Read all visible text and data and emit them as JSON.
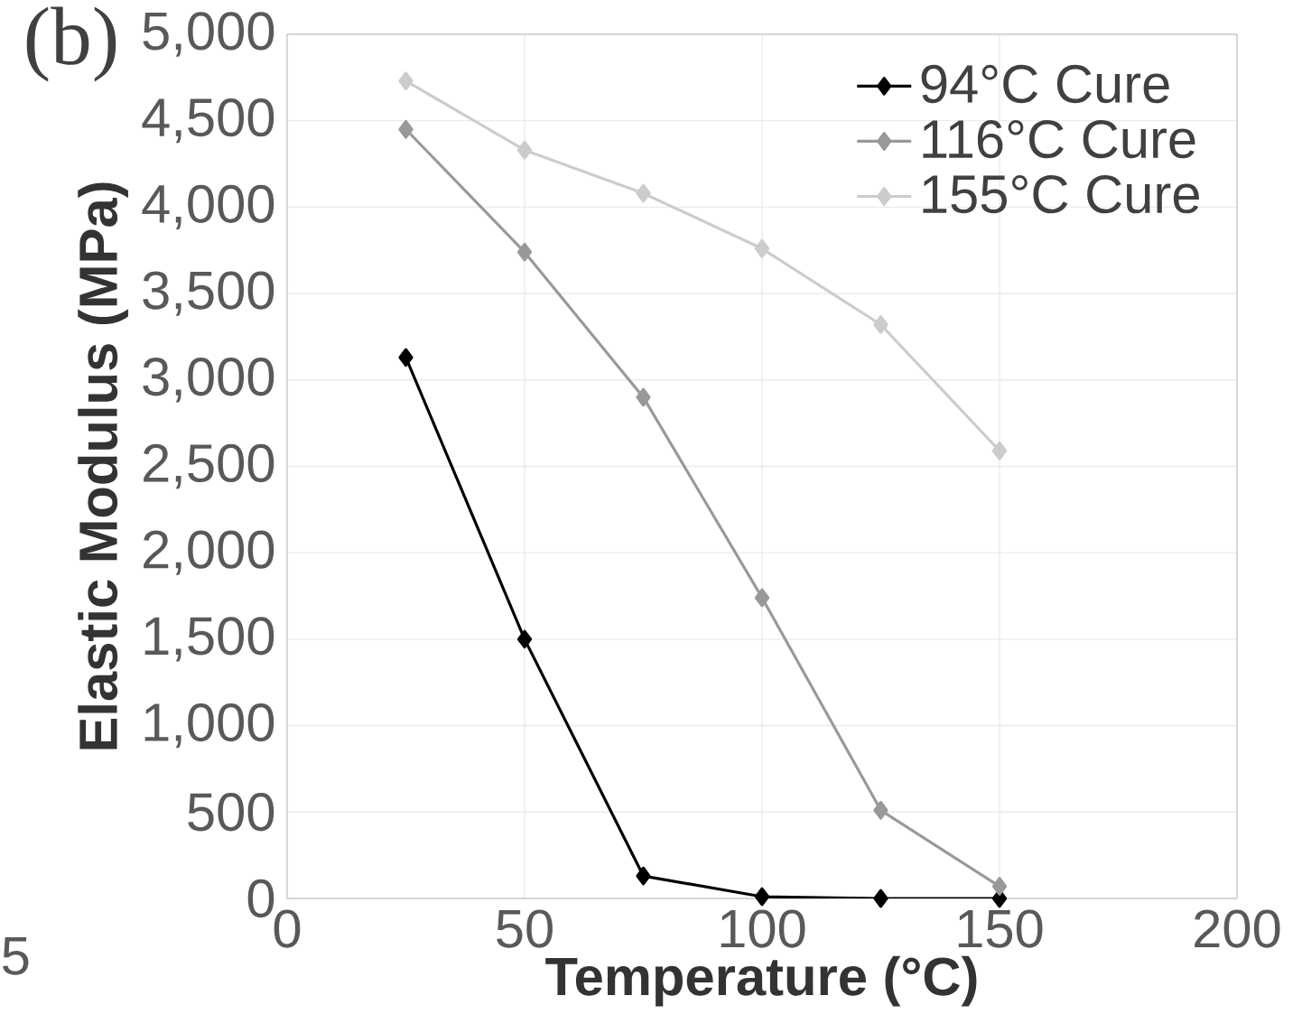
{
  "chart_data": {
    "type": "line",
    "xlabel": "Temperature (°C)",
    "ylabel": "Elastic Modulus (MPa)",
    "annotations": [
      "(b)",
      "5"
    ],
    "x": [
      25,
      50,
      75,
      100,
      125,
      150
    ],
    "series": [
      {
        "name": "94°C Cure",
        "color": "#000000",
        "values": [
          3130,
          1500,
          130,
          10,
          0,
          0
        ]
      },
      {
        "name": "116°C Cure",
        "color": "#999999",
        "values": [
          4450,
          3740,
          2900,
          1740,
          510,
          70
        ]
      },
      {
        "name": "155°C Cure",
        "color": "#cccccc",
        "values": [
          4730,
          4330,
          4080,
          3760,
          3320,
          2590
        ]
      }
    ],
    "xlim": [
      0,
      200
    ],
    "xticks": [
      0,
      50,
      100,
      150,
      200
    ],
    "ylim": [
      0,
      5000
    ],
    "yticks": [
      {
        "value": 0,
        "label": "0"
      },
      {
        "value": 500,
        "label": "500"
      },
      {
        "value": 1000,
        "label": "1,000"
      },
      {
        "value": 1500,
        "label": "1,500"
      },
      {
        "value": 2000,
        "label": "2,000"
      },
      {
        "value": 2500,
        "label": "2,500"
      },
      {
        "value": 3000,
        "label": "3,000"
      },
      {
        "value": 3500,
        "label": "3,500"
      },
      {
        "value": 4000,
        "label": "4,000"
      },
      {
        "value": 4500,
        "label": "4,500"
      },
      {
        "value": 5000,
        "label": "5,000"
      }
    ],
    "grid": true,
    "legend": "top right",
    "marker": "diamond",
    "line_style": "solid"
  }
}
